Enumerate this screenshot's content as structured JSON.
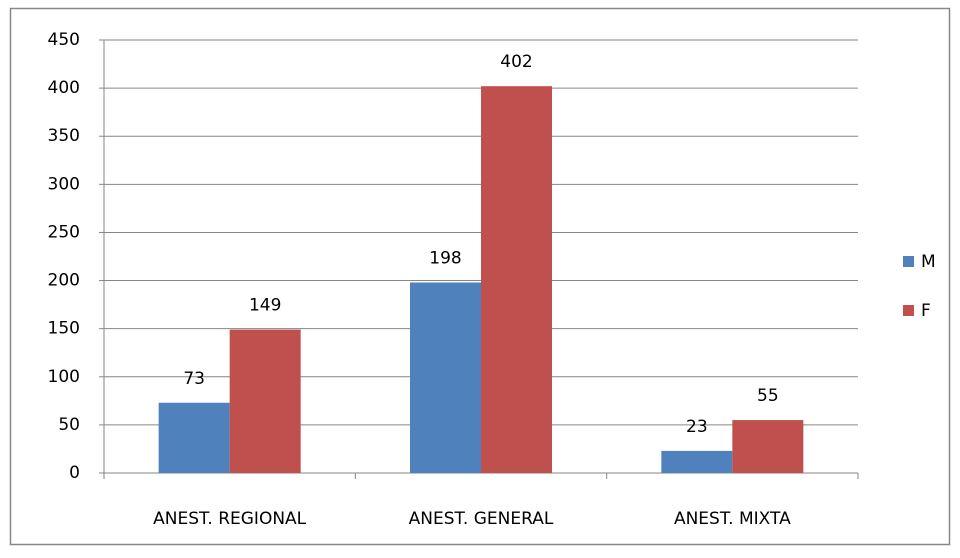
{
  "chart_data": {
    "type": "bar",
    "categories": [
      "ANEST. REGIONAL",
      "ANEST. GENERAL",
      "ANEST. MIXTA"
    ],
    "series": [
      {
        "name": "M",
        "color": "#4f81bd",
        "values": [
          73,
          198,
          23
        ]
      },
      {
        "name": "F",
        "color": "#c0504d",
        "values": [
          149,
          402,
          55
        ]
      }
    ],
    "ylim": [
      0,
      450
    ],
    "yticks": [
      0,
      50,
      100,
      150,
      200,
      250,
      300,
      350,
      400,
      450
    ],
    "grid": true,
    "legend": "right"
  }
}
